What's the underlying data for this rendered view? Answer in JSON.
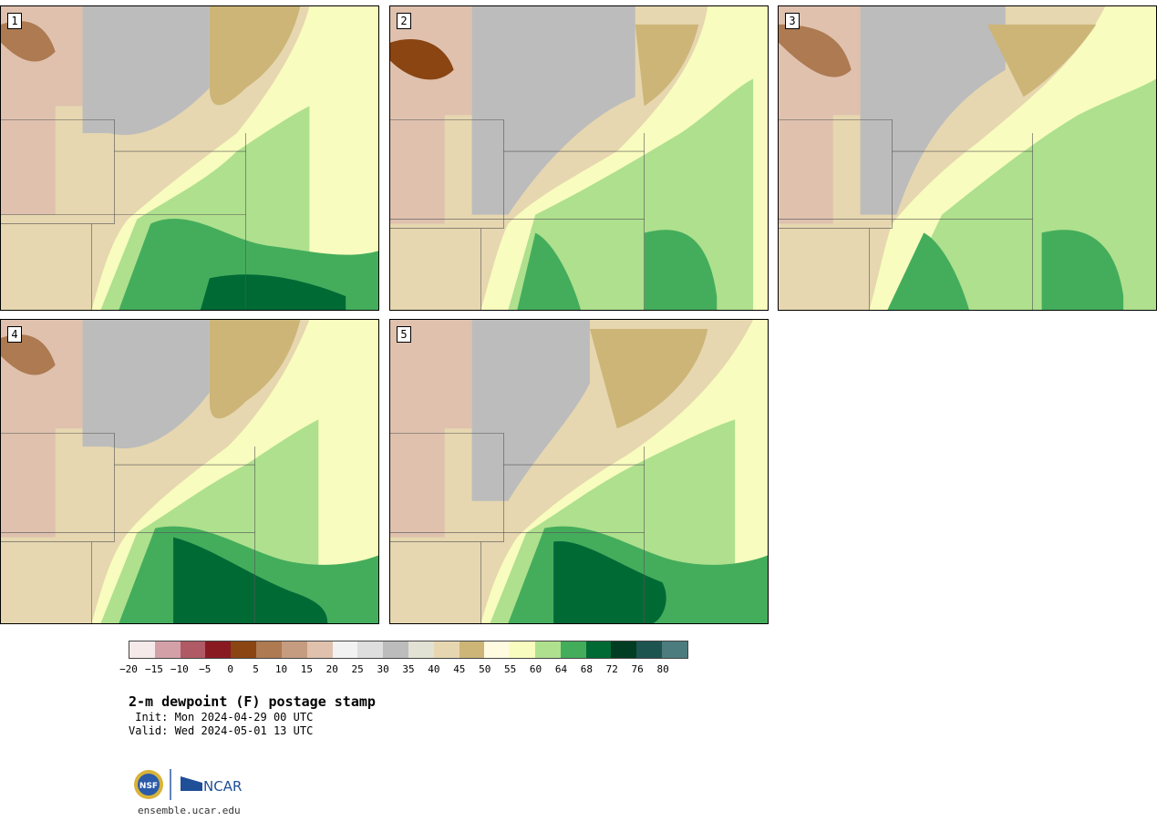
{
  "panels": [
    {
      "label": "1"
    },
    {
      "label": "2"
    },
    {
      "label": "3"
    },
    {
      "label": "4"
    },
    {
      "label": "5"
    }
  ],
  "colorbar": {
    "colors": [
      "#f5e9ea",
      "#d4a0a8",
      "#b05a66",
      "#8a1a22",
      "#8a4512",
      "#ad7a52",
      "#c69c80",
      "#dfc1ae",
      "#f2f2f2",
      "#dedede",
      "#bcbcbc",
      "#e2e2d4",
      "#e6d7b0",
      "#cdb578",
      "#fffbe0",
      "#f8fcbe",
      "#aee08e",
      "#44ad5c",
      "#006a35",
      "#003d22",
      "#1d5450",
      "#4c7c7e"
    ],
    "ticks": [
      "−20",
      "−15",
      "−10",
      "−5",
      "0",
      "5",
      "10",
      "15",
      "20",
      "25",
      "30",
      "35",
      "40",
      "45",
      "50",
      "55",
      "60",
      "64",
      "68",
      "72",
      "76",
      "80"
    ]
  },
  "title": "2-m dewpoint (F) postage stamp",
  "init": " Init: Mon 2024-04-29 00 UTC",
  "valid": "Valid: Wed 2024-05-01 13 UTC",
  "logos": {
    "nsf": "NSF",
    "ncar": "NCAR"
  },
  "site": "ensemble.ucar.edu"
}
